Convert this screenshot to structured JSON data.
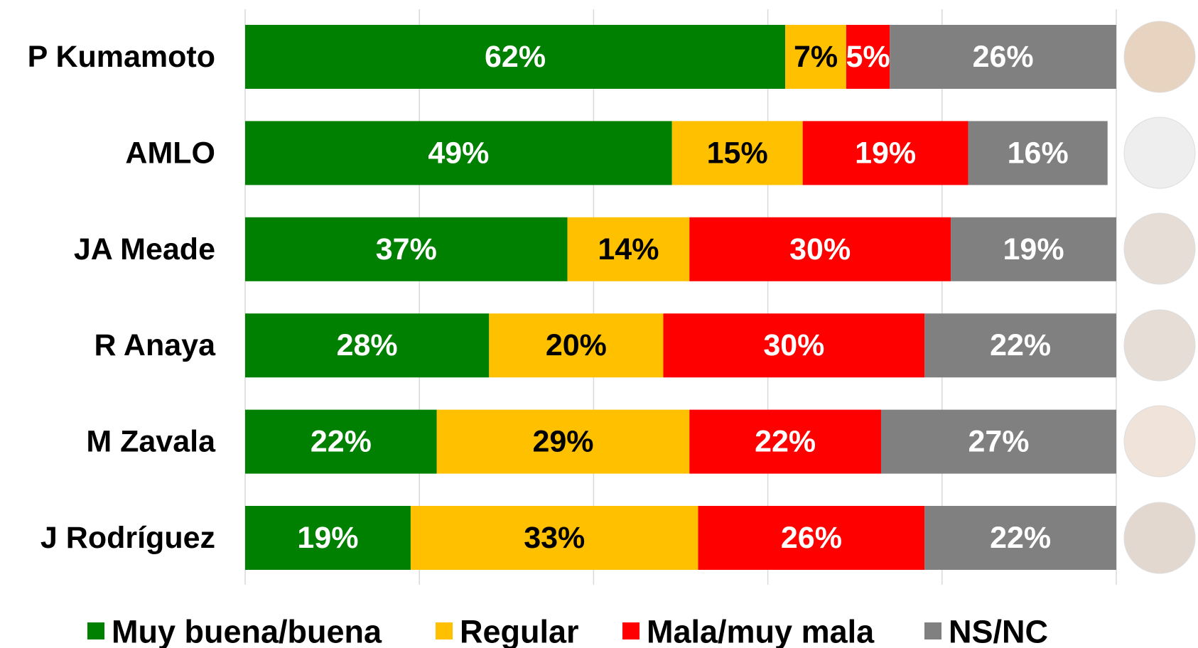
{
  "chart_data": {
    "type": "stacked-barh",
    "categories": [
      "P Kumamoto",
      "AMLO",
      "JA Meade",
      "R Anaya",
      "M Zavala",
      "J Rodríguez"
    ],
    "series": [
      {
        "name": "Muy buena/buena",
        "color": "#008000",
        "label_color": "#ffffff",
        "values": [
          62,
          49,
          37,
          28,
          22,
          19
        ],
        "value_labels": [
          "62%",
          "49%",
          "37%",
          "28%",
          "22%",
          "19%"
        ]
      },
      {
        "name": "Regular",
        "color": "#ffc000",
        "label_color": "#000000",
        "values": [
          7,
          15,
          14,
          20,
          29,
          33
        ],
        "value_labels": [
          "7%",
          "15%",
          "14%",
          "20%",
          "29%",
          "33%"
        ]
      },
      {
        "name": "Mala/muy mala",
        "color": "#ff0000",
        "label_color": "#ffffff",
        "values": [
          5,
          19,
          30,
          30,
          22,
          26
        ],
        "value_labels": [
          "5%",
          "19%",
          "30%",
          "30%",
          "22%",
          "26%"
        ]
      },
      {
        "name": "NS/NC",
        "color": "#808080",
        "label_color": "#ffffff",
        "values": [
          26,
          16,
          19,
          22,
          27,
          22
        ],
        "value_labels": [
          "26%",
          "16%",
          "19%",
          "22%",
          "27%",
          "22%"
        ]
      }
    ],
    "xlim": [
      0,
      100
    ],
    "xticks": [
      0,
      20,
      40,
      60,
      80,
      100
    ],
    "grid": true,
    "legend": "bottom"
  }
}
